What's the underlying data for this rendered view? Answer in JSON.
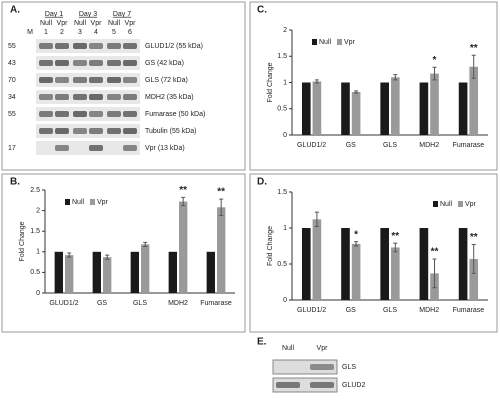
{
  "blot_a": {
    "panel_label": "A.",
    "days": [
      "Day 1",
      "Day 3",
      "Day 7"
    ],
    "conditions": [
      "Null",
      "Vpr",
      "Null",
      "Vpr",
      "Null",
      "Vpr"
    ],
    "lanes": [
      "M",
      "1",
      "2",
      "3",
      "4",
      "5",
      "6"
    ],
    "markers": [
      "55",
      "43",
      "70",
      "34",
      "55",
      null,
      "17"
    ],
    "proteins": [
      "GLUD1/2 (55 kDa)",
      "GS (42 kDa)",
      "GLS (72 kDa)",
      "MDH2 (35 kDa)",
      "Fumarase (50 kDa)",
      "Tubulin (55 kDa)",
      "Vpr (13 kDa)"
    ]
  },
  "blot_e": {
    "panel_label": "E.",
    "conditions": [
      "Null",
      "Vpr"
    ],
    "proteins": [
      "GLS",
      "GLUD2"
    ]
  },
  "chart_data": [
    {
      "type": "bar",
      "panel_label": "B.",
      "ylabel": "Fold Change",
      "categories": [
        "GLUD1/2",
        "GS",
        "GLS",
        "MDH2",
        "Fumarase"
      ],
      "series": [
        {
          "name": "Null",
          "color": "#1a1a1a",
          "values": [
            1,
            1,
            1,
            1,
            1
          ]
        },
        {
          "name": "Vpr",
          "color": "#9a9a9a",
          "values": [
            0.92,
            0.87,
            1.18,
            2.22,
            2.08
          ],
          "errors": [
            0.05,
            0.05,
            0.05,
            0.1,
            0.2
          ]
        }
      ],
      "ylim": [
        0,
        2.5
      ],
      "yticks": [
        0,
        0.5,
        1,
        1.5,
        2,
        2.5
      ],
      "legend": "top-left",
      "annotations": [
        {
          "category": "MDH2",
          "text": "**"
        },
        {
          "category": "Fumarase",
          "text": "**"
        }
      ]
    },
    {
      "type": "bar",
      "panel_label": "C.",
      "ylabel": "Fold Change",
      "categories": [
        "GLUD1/2",
        "GS",
        "GLS",
        "MDH2",
        "Fumarase"
      ],
      "series": [
        {
          "name": "Null",
          "color": "#1a1a1a",
          "values": [
            1,
            1,
            1,
            1,
            1
          ]
        },
        {
          "name": "Vpr",
          "color": "#9a9a9a",
          "values": [
            1.02,
            0.82,
            1.1,
            1.17,
            1.3
          ],
          "errors": [
            0.03,
            0.02,
            0.05,
            0.12,
            0.22
          ]
        }
      ],
      "ylim": [
        0,
        2
      ],
      "yticks": [
        0,
        0.5,
        1,
        1.5,
        2
      ],
      "legend": "top-left",
      "annotations": [
        {
          "category": "MDH2",
          "text": "*"
        },
        {
          "category": "Fumarase",
          "text": "**"
        }
      ]
    },
    {
      "type": "bar",
      "panel_label": "D.",
      "ylabel": "Fold Change",
      "categories": [
        "GLUD1/2",
        "GS",
        "GLS",
        "MDH2",
        "Fumarase"
      ],
      "series": [
        {
          "name": "Null",
          "color": "#1a1a1a",
          "values": [
            1,
            1,
            1,
            1,
            1
          ]
        },
        {
          "name": "Vpr",
          "color": "#9a9a9a",
          "values": [
            1.12,
            0.78,
            0.73,
            0.37,
            0.57
          ],
          "errors": [
            0.1,
            0.03,
            0.06,
            0.2,
            0.2
          ]
        }
      ],
      "ylim": [
        0,
        1.5
      ],
      "yticks": [
        0,
        0.5,
        1,
        1.5
      ],
      "legend": "top-right",
      "annotations": [
        {
          "category": "GS",
          "text": "*"
        },
        {
          "category": "GLS",
          "text": "**"
        },
        {
          "category": "MDH2",
          "text": "**"
        },
        {
          "category": "Fumarase",
          "text": "**"
        }
      ]
    }
  ]
}
